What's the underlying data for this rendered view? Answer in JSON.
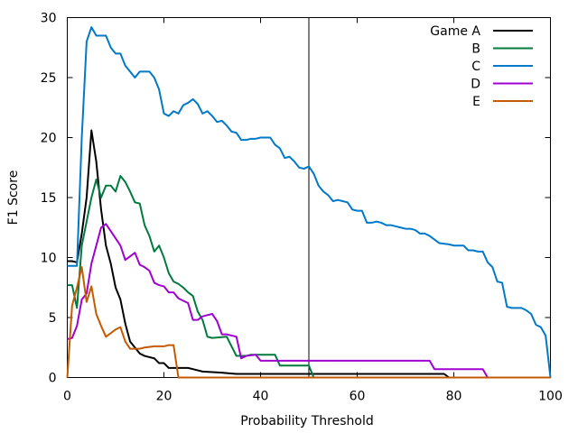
{
  "chart_data": {
    "type": "line",
    "title": "",
    "xlabel": "Probability Threshold",
    "ylabel": "F1 Score",
    "xlim": [
      0,
      100
    ],
    "ylim": [
      0,
      30
    ],
    "xticks": [
      "0",
      "20",
      "40",
      "60",
      "80",
      "100"
    ],
    "yticks": [
      "0",
      "5",
      "10",
      "15",
      "20",
      "25",
      "30"
    ],
    "grid": false,
    "legend": "top-right",
    "vline_x": 50,
    "series": [
      {
        "name": "Game A",
        "color": "#000000",
        "points": [
          [
            0,
            9.7
          ],
          [
            1,
            9.7
          ],
          [
            2,
            9.6
          ],
          [
            3,
            12
          ],
          [
            4,
            15
          ],
          [
            5,
            20.6
          ],
          [
            6,
            18
          ],
          [
            7,
            14
          ],
          [
            8,
            11
          ],
          [
            9,
            9.5
          ],
          [
            10,
            7.5
          ],
          [
            11,
            6.5
          ],
          [
            12,
            4.5
          ],
          [
            13,
            3
          ],
          [
            14,
            2.5
          ],
          [
            15,
            2
          ],
          [
            16,
            1.8
          ],
          [
            18,
            1.6
          ],
          [
            19,
            1.2
          ],
          [
            20,
            1.2
          ],
          [
            21,
            0.8
          ],
          [
            25,
            0.8
          ],
          [
            26,
            0.7
          ],
          [
            28,
            0.5
          ],
          [
            32,
            0.4
          ],
          [
            35,
            0.3
          ],
          [
            40,
            0.3
          ],
          [
            45,
            0.3
          ],
          [
            50,
            0.3
          ],
          [
            60,
            0.3
          ],
          [
            70,
            0.3
          ],
          [
            78,
            0.3
          ],
          [
            79,
            0
          ],
          [
            100,
            0
          ]
        ]
      },
      {
        "name": "B",
        "color": "#007a3d",
        "points": [
          [
            0,
            7.7
          ],
          [
            1,
            7.7
          ],
          [
            2,
            5.8
          ],
          [
            3,
            11
          ],
          [
            4,
            13
          ],
          [
            5,
            15
          ],
          [
            6,
            16.5
          ],
          [
            7,
            15
          ],
          [
            8,
            16
          ],
          [
            9,
            16
          ],
          [
            10,
            15.5
          ],
          [
            11,
            16.8
          ],
          [
            12,
            16.3
          ],
          [
            13,
            15.5
          ],
          [
            14,
            14.6
          ],
          [
            15,
            14.5
          ],
          [
            16,
            12.7
          ],
          [
            17,
            11.8
          ],
          [
            18,
            10.5
          ],
          [
            19,
            11
          ],
          [
            20,
            10
          ],
          [
            21,
            8.7
          ],
          [
            22,
            8
          ],
          [
            23,
            7.8
          ],
          [
            24,
            7.5
          ],
          [
            25,
            7.1
          ],
          [
            26,
            6.8
          ],
          [
            27,
            5.5
          ],
          [
            28,
            4.8
          ],
          [
            29,
            3.4
          ],
          [
            30,
            3.3
          ],
          [
            33,
            3.4
          ],
          [
            35,
            1.8
          ],
          [
            37,
            1.8
          ],
          [
            38,
            1.9
          ],
          [
            43,
            1.9
          ],
          [
            44,
            1
          ],
          [
            49,
            1
          ],
          [
            50,
            1
          ],
          [
            51,
            0
          ],
          [
            100,
            0
          ]
        ]
      },
      {
        "name": "C",
        "color": "#0079c9",
        "points": [
          [
            0,
            9.3
          ],
          [
            2,
            9.3
          ],
          [
            3,
            20
          ],
          [
            4,
            28
          ],
          [
            5,
            29.2
          ],
          [
            6,
            28.5
          ],
          [
            8,
            28.5
          ],
          [
            9,
            27.5
          ],
          [
            10,
            27
          ],
          [
            11,
            27
          ],
          [
            12,
            26
          ],
          [
            13,
            25.5
          ],
          [
            14,
            25
          ],
          [
            15,
            25.5
          ],
          [
            17,
            25.5
          ],
          [
            18,
            25
          ],
          [
            19,
            24
          ],
          [
            20,
            22
          ],
          [
            21,
            21.8
          ],
          [
            22,
            22.2
          ],
          [
            23,
            22
          ],
          [
            24,
            22.7
          ],
          [
            25,
            22.9
          ],
          [
            26,
            23.2
          ],
          [
            27,
            22.8
          ],
          [
            28,
            22
          ],
          [
            29,
            22.2
          ],
          [
            30,
            21.8
          ],
          [
            31,
            21.3
          ],
          [
            32,
            21.4
          ],
          [
            33,
            21
          ],
          [
            34,
            20.5
          ],
          [
            35,
            20.4
          ],
          [
            36,
            19.8
          ],
          [
            37,
            19.8
          ],
          [
            38,
            19.9
          ],
          [
            39,
            19.9
          ],
          [
            40,
            20
          ],
          [
            42,
            20
          ],
          [
            43,
            19.4
          ],
          [
            44,
            19.1
          ],
          [
            45,
            18.3
          ],
          [
            46,
            18.4
          ],
          [
            47,
            18
          ],
          [
            48,
            17.5
          ],
          [
            49,
            17.4
          ],
          [
            50,
            17.6
          ],
          [
            51,
            17
          ],
          [
            52,
            16
          ],
          [
            53,
            15.5
          ],
          [
            54,
            15.2
          ],
          [
            55,
            14.7
          ],
          [
            56,
            14.8
          ],
          [
            57,
            14.7
          ],
          [
            58,
            14.6
          ],
          [
            59,
            14
          ],
          [
            60,
            13.9
          ],
          [
            61,
            13.9
          ],
          [
            62,
            12.9
          ],
          [
            63,
            12.9
          ],
          [
            64,
            13
          ],
          [
            65,
            12.9
          ],
          [
            66,
            12.7
          ],
          [
            67,
            12.7
          ],
          [
            68,
            12.6
          ],
          [
            69,
            12.5
          ],
          [
            70,
            12.4
          ],
          [
            71,
            12.4
          ],
          [
            72,
            12.3
          ],
          [
            73,
            12
          ],
          [
            74,
            12
          ],
          [
            75,
            11.8
          ],
          [
            76,
            11.5
          ],
          [
            77,
            11.2
          ],
          [
            79,
            11.1
          ],
          [
            80,
            11
          ],
          [
            81,
            11
          ],
          [
            82,
            11
          ],
          [
            83,
            10.6
          ],
          [
            84,
            10.6
          ],
          [
            85,
            10.5
          ],
          [
            86,
            10.5
          ],
          [
            87,
            9.6
          ],
          [
            88,
            9.2
          ],
          [
            89,
            8
          ],
          [
            90,
            7.9
          ],
          [
            91,
            5.9
          ],
          [
            92,
            5.8
          ],
          [
            93,
            5.8
          ],
          [
            94,
            5.8
          ],
          [
            95,
            5.6
          ],
          [
            96,
            5.3
          ],
          [
            97,
            4.4
          ],
          [
            98,
            4.2
          ],
          [
            99,
            3.5
          ],
          [
            100,
            0
          ]
        ]
      },
      {
        "name": "D",
        "color": "#a000d0",
        "points": [
          [
            0,
            3.2
          ],
          [
            1,
            3.3
          ],
          [
            2,
            4.3
          ],
          [
            3,
            6.5
          ],
          [
            4,
            7
          ],
          [
            5,
            9.5
          ],
          [
            6,
            11
          ],
          [
            7,
            12.5
          ],
          [
            8,
            12.8
          ],
          [
            9,
            12.2
          ],
          [
            10,
            11.6
          ],
          [
            11,
            11
          ],
          [
            12,
            9.8
          ],
          [
            13,
            10.1
          ],
          [
            14,
            10.4
          ],
          [
            15,
            9.4
          ],
          [
            16,
            9.2
          ],
          [
            17,
            8.9
          ],
          [
            18,
            7.9
          ],
          [
            19,
            7.7
          ],
          [
            20,
            7.6
          ],
          [
            21,
            7.1
          ],
          [
            22,
            7.1
          ],
          [
            23,
            6.6
          ],
          [
            24,
            6.4
          ],
          [
            25,
            6.2
          ],
          [
            26,
            4.8
          ],
          [
            27,
            4.8
          ],
          [
            28,
            5.1
          ],
          [
            29,
            5.2
          ],
          [
            30,
            5.3
          ],
          [
            31,
            4.7
          ],
          [
            32,
            3.6
          ],
          [
            33,
            3.6
          ],
          [
            34,
            3.5
          ],
          [
            35,
            3.4
          ],
          [
            36,
            1.6
          ],
          [
            37,
            1.8
          ],
          [
            39,
            1.9
          ],
          [
            40,
            1.4
          ],
          [
            41,
            1.4
          ],
          [
            45,
            1.4
          ],
          [
            75,
            1.4
          ],
          [
            76,
            0.7
          ],
          [
            86,
            0.7
          ],
          [
            87,
            0
          ],
          [
            100,
            0
          ]
        ]
      },
      {
        "name": "E",
        "color": "#c55a00",
        "points": [
          [
            0,
            0
          ],
          [
            1,
            6
          ],
          [
            2,
            7.5
          ],
          [
            3,
            9.2
          ],
          [
            4,
            6.3
          ],
          [
            5,
            7.6
          ],
          [
            6,
            5.3
          ],
          [
            7,
            4.3
          ],
          [
            8,
            3.4
          ],
          [
            9,
            3.7
          ],
          [
            10,
            4
          ],
          [
            11,
            4.2
          ],
          [
            12,
            3
          ],
          [
            13,
            2.4
          ],
          [
            15,
            2.4
          ],
          [
            16,
            2.5
          ],
          [
            18,
            2.6
          ],
          [
            20,
            2.6
          ],
          [
            21,
            2.7
          ],
          [
            22,
            2.7
          ],
          [
            23,
            0
          ],
          [
            100,
            0
          ]
        ]
      }
    ]
  }
}
